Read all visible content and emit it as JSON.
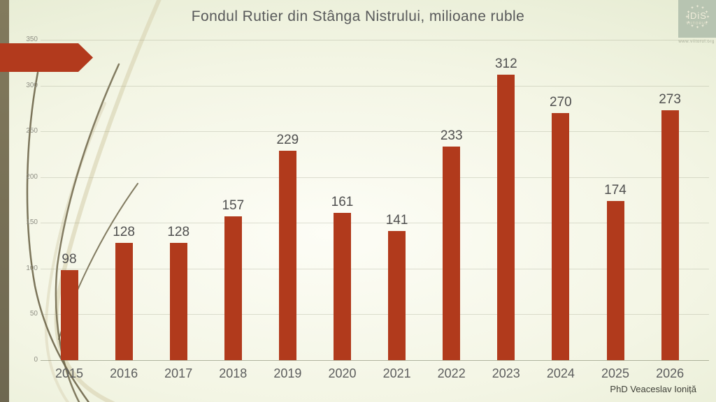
{
  "slide": {
    "title": "Fondul Rutier din Stânga Nistrului, milioane ruble",
    "credit": "PhD Veaceslav Ioniță",
    "logo": {
      "text": "iDiS",
      "subtext": "VIITORUL",
      "url": "www.viitorul.org"
    }
  },
  "theme": {
    "bar_color": "#b13a1c",
    "arrow_color": "#b23a1d",
    "strip_color": "#7b7458",
    "title_color": "#58595a",
    "label_color": "#4f4f4f",
    "tick_color": "#8e8e83"
  },
  "chart_data": {
    "type": "bar",
    "title": "Fondul Rutier din Stânga Nistrului, milioane ruble",
    "categories": [
      "2015",
      "2016",
      "2017",
      "2018",
      "2019",
      "2020",
      "2021",
      "2022",
      "2023",
      "2024",
      "2025",
      "2026"
    ],
    "values": [
      98,
      128,
      128,
      157,
      229,
      161,
      141,
      233,
      312,
      270,
      174,
      273
    ],
    "xlabel": "",
    "ylabel": "",
    "ylim": [
      0,
      350
    ],
    "yticks": [
      0,
      50,
      100,
      150,
      200,
      250,
      300,
      350
    ],
    "grid": true,
    "legend": false,
    "bar_color": "#b13a1c",
    "label_color": "#4f4f4f"
  }
}
